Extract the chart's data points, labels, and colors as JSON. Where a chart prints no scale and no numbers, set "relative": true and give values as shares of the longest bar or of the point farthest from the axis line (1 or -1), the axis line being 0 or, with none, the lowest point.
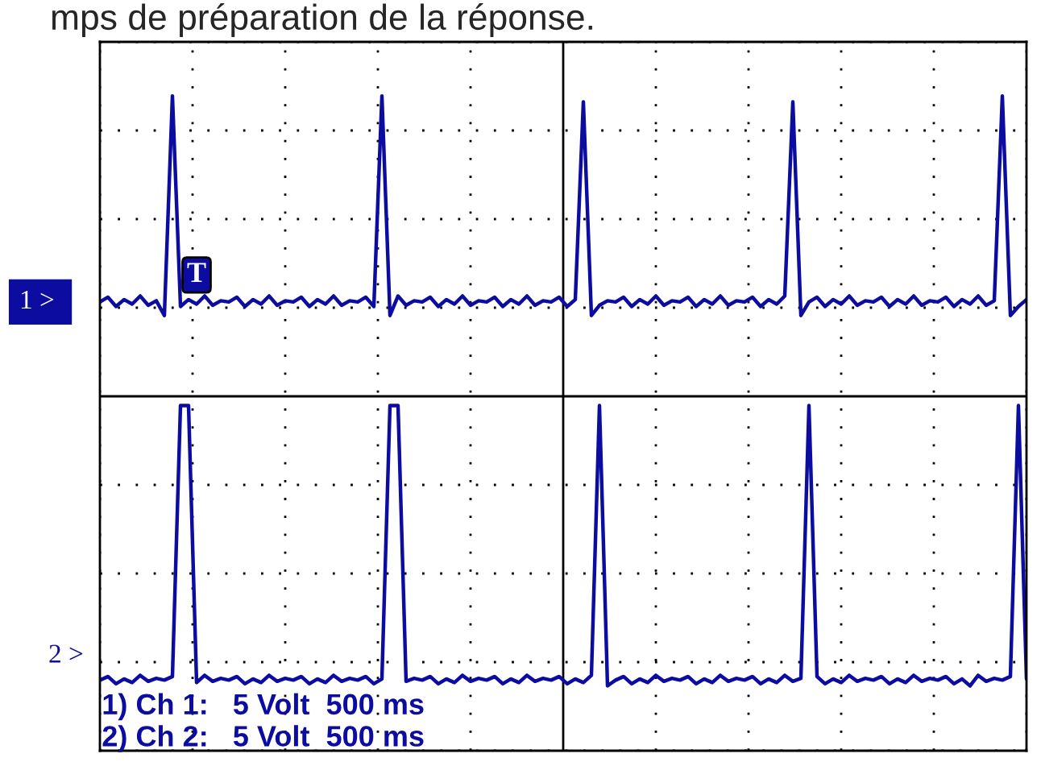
{
  "chart_data": {
    "type": "line",
    "title": "mps de préparation de la réponse.",
    "relative": true,
    "grid": true,
    "tick_labels": false,
    "categories": [
      null,
      null,
      null,
      null,
      null,
      null,
      null,
      null,
      null,
      null,
      null,
      null,
      null,
      null,
      null,
      null,
      null,
      null,
      null,
      null,
      null,
      null,
      null,
      null,
      null,
      null,
      null,
      null,
      null,
      null,
      null,
      null,
      null,
      null,
      null,
      null,
      null,
      null,
      null,
      null,
      null,
      null,
      null,
      null,
      null,
      null,
      null,
      null,
      null,
      null,
      null,
      null,
      null,
      null,
      null,
      null,
      null,
      null,
      null,
      null,
      null,
      null,
      null,
      null,
      null,
      null,
      null,
      null,
      null,
      null,
      null,
      null,
      null,
      null,
      null,
      null,
      null,
      null,
      null,
      null,
      null,
      null,
      null,
      null,
      null,
      null,
      null,
      null,
      null,
      null,
      null,
      null,
      null,
      null,
      null,
      null,
      null,
      null,
      null,
      null,
      null,
      null,
      null,
      null,
      null,
      null,
      null,
      null,
      null,
      null,
      null,
      null,
      null,
      null,
      null,
      null
    ],
    "series": [
      {
        "name": "1 >",
        "color": "#0c0ca0",
        "values": [
          0.314,
          0.33,
          0.299,
          0.322,
          0.307,
          0.334,
          0.303,
          0.318,
          0.269,
          1.0,
          0.299,
          0.322,
          0.307,
          0.334,
          0.303,
          0.318,
          0.314,
          0.33,
          0.299,
          0.322,
          0.307,
          0.334,
          0.303,
          0.318,
          0.314,
          0.33,
          0.299,
          0.322,
          0.307,
          0.334,
          0.303,
          0.318,
          0.314,
          0.33,
          0.299,
          1.0,
          0.269,
          0.334,
          0.303,
          0.318,
          0.314,
          0.33,
          0.299,
          0.322,
          0.307,
          0.334,
          0.303,
          0.318,
          0.314,
          0.33,
          0.299,
          0.322,
          0.307,
          0.334,
          0.303,
          0.318,
          0.314,
          0.33,
          0.299,
          0.322,
          0.98,
          0.269,
          0.303,
          0.318,
          0.314,
          0.33,
          0.299,
          0.322,
          0.307,
          0.334,
          0.303,
          0.318,
          0.314,
          0.33,
          0.299,
          0.322,
          0.307,
          0.334,
          0.303,
          0.318,
          0.314,
          0.33,
          0.299,
          0.322,
          0.307,
          0.334,
          0.98,
          0.269,
          0.314,
          0.33,
          0.299,
          0.322,
          0.307,
          0.334,
          0.303,
          0.318,
          0.314,
          0.33,
          0.299,
          0.322,
          0.307,
          0.334,
          0.303,
          0.318,
          0.314,
          0.33,
          0.299,
          0.322,
          0.307,
          0.334,
          0.303,
          0.318,
          1.0,
          0.269,
          0.299,
          0.322
        ]
      },
      {
        "name": "2 >",
        "color": "#0c0ca0",
        "values": [
          -0.945,
          -0.933,
          -0.957,
          -0.941,
          -0.953,
          -0.929,
          -0.949,
          -0.939,
          -0.945,
          -0.933,
          -0.031,
          -0.031,
          -0.953,
          -0.929,
          -0.949,
          -0.939,
          -0.945,
          -0.933,
          -0.957,
          -0.941,
          -0.953,
          -0.929,
          -0.949,
          -0.939,
          -0.945,
          -0.933,
          -0.957,
          -0.941,
          -0.953,
          -0.929,
          -0.949,
          -0.939,
          -0.945,
          -0.933,
          -0.957,
          -0.941,
          -0.031,
          -0.031,
          -0.949,
          -0.939,
          -0.945,
          -0.933,
          -0.957,
          -0.941,
          -0.953,
          -0.929,
          -0.949,
          -0.939,
          -0.945,
          -0.933,
          -0.957,
          -0.941,
          -0.953,
          -0.929,
          -0.949,
          -0.939,
          -0.945,
          -0.933,
          -0.957,
          -0.941,
          -0.953,
          -0.929,
          -0.031,
          -0.964,
          -0.945,
          -0.933,
          -0.957,
          -0.941,
          -0.953,
          -0.929,
          -0.949,
          -0.939,
          -0.945,
          -0.933,
          -0.957,
          -0.941,
          -0.953,
          -0.929,
          -0.949,
          -0.939,
          -0.945,
          -0.933,
          -0.957,
          -0.941,
          -0.953,
          -0.929,
          -0.949,
          -0.939,
          -0.031,
          -0.933,
          -0.957,
          -0.941,
          -0.953,
          -0.929,
          -0.949,
          -0.939,
          -0.945,
          -0.933,
          -0.957,
          -0.941,
          -0.953,
          -0.929,
          -0.949,
          -0.939,
          -0.945,
          -0.933,
          -0.957,
          -0.941,
          -0.964,
          -0.929,
          -0.949,
          -0.939,
          -0.945,
          -0.933,
          -0.031,
          -0.941
        ]
      }
    ],
    "annotations": [
      "T",
      "1) Ch 1:   5 Volt  500 ms",
      "2) Ch 2:   5 Volt  500 ms"
    ]
  }
}
